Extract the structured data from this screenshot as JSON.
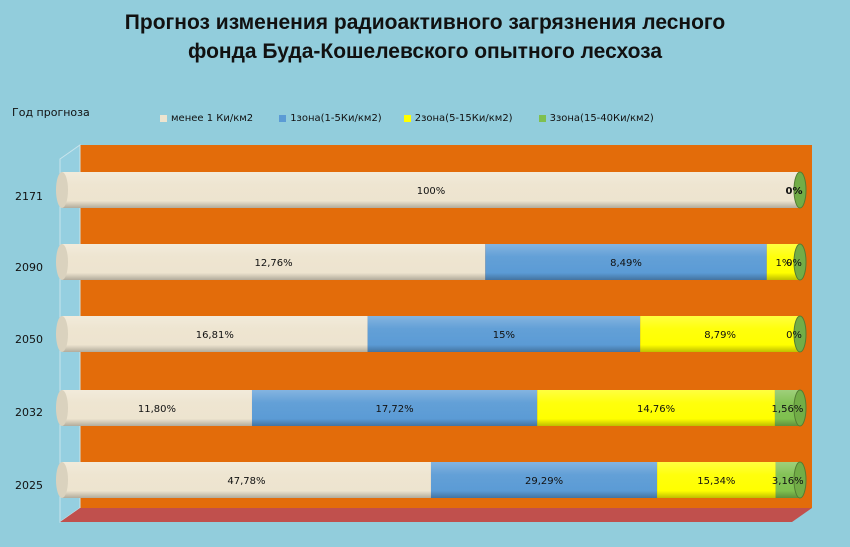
{
  "chart_data": {
    "type": "bar",
    "orientation": "horizontal",
    "stacked": true,
    "title_lines": [
      "Прогноз изменения радиоактивного загрязнения лесного",
      "фонда Буда-Кошелевского опытного лесхоза"
    ],
    "ylabel": "Год прогноза",
    "categories": [
      "2171",
      "2090",
      "2050",
      "2032",
      "2025"
    ],
    "series": [
      {
        "name": "менее 1 Ки/км2",
        "color": "#ede4cf",
        "values": [
          100,
          12.76,
          16.81,
          11.8,
          47.78
        ],
        "labels": [
          "100%",
          "12,76%",
          "16,81%",
          "11,80%",
          "47,78%"
        ]
      },
      {
        "name": "1зона(1-5Ки/км2)",
        "color": "#5b9bd5",
        "values": [
          0,
          8.49,
          15,
          17.72,
          29.29
        ],
        "labels": [
          "",
          "8,49%",
          "15%",
          "17,72%",
          "29,29%"
        ]
      },
      {
        "name": "2зона(5-15Ки/км2)",
        "color": "#ffff00",
        "values": [
          0,
          1,
          8.79,
          14.76,
          15.34
        ],
        "labels": [
          "",
          "1%",
          "8,79%",
          "14,76%",
          "15,34%"
        ]
      },
      {
        "name": "3зона(15-40Ки/км2)",
        "color": "#7fc04f",
        "values": [
          0,
          0,
          0,
          1.56,
          3.16
        ],
        "labels": [
          "0%",
          "0%",
          "0%",
          "1,56%",
          "3,16%"
        ]
      }
    ],
    "grid": false,
    "legend_position": "top",
    "plot_background": "#e36c0a",
    "floor_color": "#c0504d"
  }
}
